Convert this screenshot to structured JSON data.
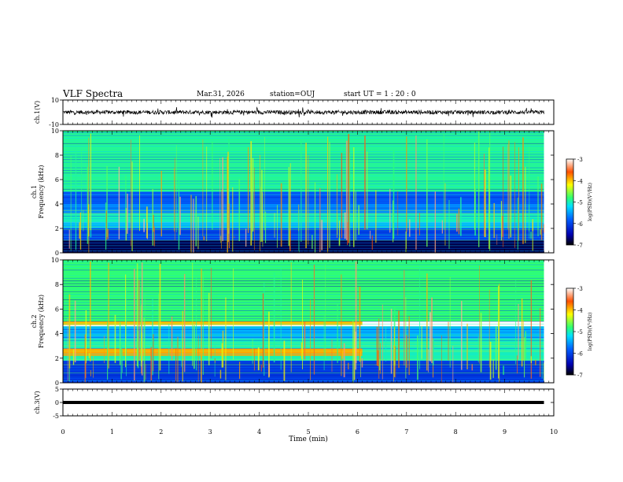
{
  "header": {
    "title": "VLF Spectra",
    "date": "Mar.31, 2026",
    "station": "station=OUJ",
    "start": "start  UT =  1 : 20 : 0"
  },
  "chart_data": [
    {
      "type": "line",
      "panel": "ch1-waveform",
      "ylabel": "ch.1(V)",
      "ylim": [
        -10,
        10
      ],
      "yticks": [
        10,
        -10
      ],
      "xlim": [
        0,
        10
      ],
      "baseline": 0,
      "color": "#000000"
    },
    {
      "type": "heatmap",
      "panel": "ch1-spectrogram",
      "ylabel": [
        "ch.1",
        "Frequency (kHz)"
      ],
      "ylim": [
        0,
        10
      ],
      "yticks": [
        0,
        2,
        4,
        6,
        8,
        10
      ],
      "xlim": [
        0,
        10
      ],
      "colorbar": {
        "label": "log(PSD)(V²/Hz)",
        "range": [
          -7,
          -3
        ],
        "ticks": [
          -3,
          -4,
          -5,
          -6,
          -7
        ]
      },
      "bands": [
        {
          "fmin": 0,
          "fmax": 1.0,
          "level": -6.8,
          "tmin": 0,
          "tmax": 9.8
        },
        {
          "fmin": 1.0,
          "fmax": 2.0,
          "level": -6.0,
          "tmin": 0,
          "tmax": 9.8
        },
        {
          "fmin": 2.0,
          "fmax": 2.5,
          "level": -5.4,
          "tmin": 0,
          "tmax": 9.8
        },
        {
          "fmin": 2.5,
          "fmax": 3.2,
          "level": -5.0,
          "tmin": 0,
          "tmax": 9.8
        },
        {
          "fmin": 3.2,
          "fmax": 4.0,
          "level": -5.6,
          "tmin": 0,
          "tmax": 9.8
        },
        {
          "fmin": 4.0,
          "fmax": 5.0,
          "level": -5.9,
          "tmin": 0,
          "tmax": 9.8
        },
        {
          "fmin": 5.0,
          "fmax": 10.0,
          "level": -4.9,
          "tmin": 0,
          "tmax": 9.8
        }
      ]
    },
    {
      "type": "heatmap",
      "panel": "ch2-spectrogram",
      "ylabel": [
        "ch.2",
        "Frequency (kHz)"
      ],
      "ylim": [
        0,
        10
      ],
      "yticks": [
        0,
        2,
        4,
        6,
        8,
        10
      ],
      "xlim": [
        0,
        10
      ],
      "colorbar": {
        "label": "log(PSD)(V²/Hz)",
        "range": [
          -7,
          -3
        ],
        "ticks": [
          -3,
          -4,
          -5,
          -6,
          -7
        ]
      },
      "bands": [
        {
          "fmin": 0,
          "fmax": 1.8,
          "level": -6.1,
          "tmin": 0,
          "tmax": 9.8
        },
        {
          "fmin": 1.8,
          "fmax": 3.6,
          "level": -5.0,
          "tmin": 0,
          "tmax": 9.8
        },
        {
          "fmin": 2.2,
          "fmax": 2.8,
          "level": -3.9,
          "tmin": 0,
          "tmax": 6.1
        },
        {
          "fmin": 3.6,
          "fmax": 4.6,
          "level": -5.4,
          "tmin": 0,
          "tmax": 9.8
        },
        {
          "fmin": 4.7,
          "fmax": 5.2,
          "level": -4.0,
          "tmin": 0,
          "tmax": 6.1
        },
        {
          "fmin": 5.0,
          "fmax": 10.0,
          "level": -4.8,
          "tmin": 0,
          "tmax": 9.8
        }
      ]
    },
    {
      "type": "line",
      "panel": "ch3-signal",
      "ylabel": "ch.3(V)",
      "ylim": [
        -5,
        5
      ],
      "yticks": [
        5,
        0,
        -5
      ],
      "xlim": [
        0,
        10
      ],
      "level": 0,
      "color": "#000000"
    }
  ],
  "axis": {
    "xlabel": "Time (min)",
    "xticks": [
      0,
      1,
      2,
      3,
      4,
      5,
      6,
      7,
      8,
      9,
      10
    ]
  }
}
